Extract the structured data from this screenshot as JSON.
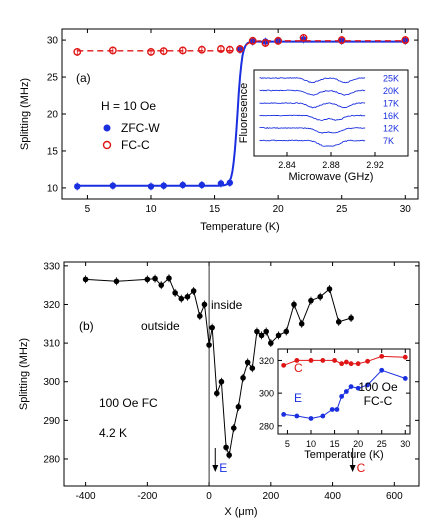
{
  "chart_data": [
    {
      "type": "scatter",
      "panel_label": "(a)",
      "xlabel": "Temperature (K)",
      "ylabel": "Splitting (MHz)",
      "xlim": [
        3,
        31
      ],
      "ylim": [
        8.5,
        31.5
      ],
      "xticks": [
        5,
        10,
        15,
        20,
        25,
        30
      ],
      "yticks": [
        10,
        15,
        20,
        25,
        30
      ],
      "field_label": "H = 10 Oe",
      "legend_position": "center-left",
      "series": [
        {
          "name": "ZFC-W",
          "color": "#1a2fe0",
          "marker": "filled-circle",
          "points": [
            [
              4.2,
              10.2
            ],
            [
              7,
              10.3
            ],
            [
              10,
              10.2
            ],
            [
              11,
              10.3
            ],
            [
              12.5,
              10.4
            ],
            [
              14,
              10.4
            ],
            [
              15.5,
              10.6
            ],
            [
              16.2,
              10.7
            ],
            [
              17,
              28.7
            ],
            [
              18,
              29.8
            ],
            [
              19,
              29.8
            ],
            [
              20,
              29.9
            ],
            [
              22,
              30.1
            ],
            [
              25,
              29.9
            ],
            [
              30,
              29.9
            ]
          ],
          "fit": "sigmoid-step"
        },
        {
          "name": "FC-C",
          "color": "#e01515",
          "marker": "open-circle",
          "points": [
            [
              4.2,
              28.4
            ],
            [
              7,
              28.6
            ],
            [
              10,
              28.4
            ],
            [
              11,
              28.5
            ],
            [
              12.5,
              28.6
            ],
            [
              14,
              28.7
            ],
            [
              15.5,
              28.8
            ],
            [
              16.2,
              28.7
            ],
            [
              17,
              28.8
            ],
            [
              18,
              29.9
            ],
            [
              19,
              29.6
            ],
            [
              20,
              29.9
            ],
            [
              22,
              30.3
            ],
            [
              25,
              30.0
            ],
            [
              30,
              30.0
            ]
          ],
          "fit": "dashed"
        }
      ],
      "inset": {
        "xlabel": "Microwave (GHz)",
        "ylabel": "Fluoresence",
        "xlim": [
          2.81,
          2.95
        ],
        "xticks": [
          "2.84",
          "2.88",
          "2.92"
        ],
        "traces": [
          "25K",
          "20K",
          "17K",
          "16K",
          "12K",
          "7K"
        ],
        "color": "#1a2fe0"
      }
    },
    {
      "type": "line",
      "panel_label": "(b)",
      "xlabel": "X (μm)",
      "ylabel": "Splitting (MHz)",
      "xlim": [
        -470,
        680
      ],
      "ylim": [
        273,
        331
      ],
      "xticks": [
        -400,
        -200,
        0,
        200,
        400,
        600
      ],
      "yticks": [
        280,
        290,
        300,
        310,
        320,
        330
      ],
      "annotations": {
        "outside": "outside",
        "inside": "inside",
        "field": "100 Oe FC",
        "temperature": "4.2 K",
        "marker_e": "E",
        "marker_c": "C"
      },
      "marker_positions": {
        "E": 20,
        "C": 465
      },
      "boundary_x": 0,
      "series": [
        {
          "name": "",
          "color": "#000000",
          "points": [
            [
              -400,
              326.5
            ],
            [
              -300,
              326
            ],
            [
              -200,
              326.5
            ],
            [
              -175,
              326.7
            ],
            [
              -155,
              325
            ],
            [
              -130,
              326.8
            ],
            [
              -110,
              323
            ],
            [
              -90,
              321.5
            ],
            [
              -70,
              322
            ],
            [
              -50,
              323.5
            ],
            [
              -30,
              317
            ],
            [
              -15,
              320
            ],
            [
              0,
              309.5
            ],
            [
              10,
              314
            ],
            [
              25,
              297
            ],
            [
              40,
              300
            ],
            [
              55,
              283
            ],
            [
              65,
              281
            ],
            [
              80,
              288
            ],
            [
              95,
              293.5
            ],
            [
              110,
              301
            ],
            [
              125,
              305
            ],
            [
              140,
              303.5
            ],
            [
              155,
              313
            ],
            [
              170,
              312
            ],
            [
              185,
              313
            ],
            [
              200,
              310
            ],
            [
              225,
              312
            ],
            [
              250,
              313
            ],
            [
              275,
              320
            ],
            [
              300,
              315
            ],
            [
              330,
              321
            ],
            [
              360,
              322
            ],
            [
              390,
              324
            ],
            [
              420,
              315.5
            ],
            [
              460,
              316.5
            ]
          ]
        }
      ],
      "inset": {
        "xlabel": "Temperature (K)",
        "xlim": [
          3,
          31
        ],
        "ylim": [
          275,
          327
        ],
        "xticks": [
          5,
          10,
          15,
          20,
          25,
          30
        ],
        "yticks": [
          280,
          300,
          320
        ],
        "label_line1": "100 Oe",
        "label_line2": "FC-C",
        "series": [
          {
            "name": "C",
            "color": "#e01515",
            "points": [
              [
                4.2,
                317
              ],
              [
                7,
                320
              ],
              [
                10,
                320
              ],
              [
                12.5,
                320
              ],
              [
                15,
                320
              ],
              [
                16.5,
                318
              ],
              [
                17.5,
                319
              ],
              [
                18.5,
                318
              ],
              [
                20,
                318
              ],
              [
                22,
                319.5
              ],
              [
                25,
                322.5
              ],
              [
                30,
                322
              ]
            ]
          },
          {
            "name": "E",
            "color": "#1a2fe0",
            "points": [
              [
                4.2,
                287
              ],
              [
                7,
                286
              ],
              [
                10,
                284.5
              ],
              [
                12.5,
                286
              ],
              [
                14.5,
                290
              ],
              [
                15.5,
                290
              ],
              [
                16.5,
                298
              ],
              [
                17.5,
                301
              ],
              [
                18.5,
                304
              ],
              [
                20,
                303
              ],
              [
                22,
                305
              ],
              [
                25,
                314
              ],
              [
                30,
                309
              ]
            ]
          }
        ]
      }
    }
  ]
}
